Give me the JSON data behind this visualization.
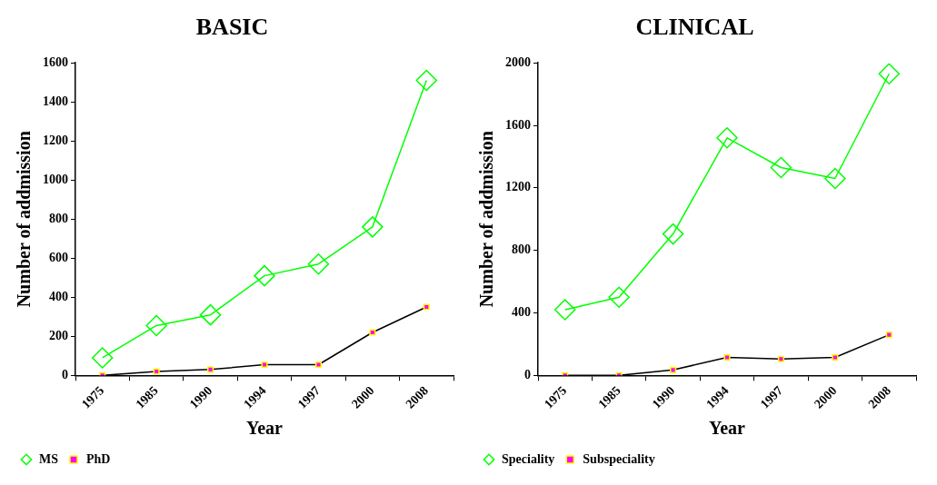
{
  "chart_data": [
    {
      "type": "line",
      "title": "BASIC",
      "xlabel": "Year",
      "ylabel": "Number of addmission",
      "categories": [
        "1975",
        "1985",
        "1990",
        "1994",
        "1997",
        "2000",
        "2008"
      ],
      "ylim": [
        0,
        1600
      ],
      "yticks": [
        0,
        200,
        400,
        600,
        800,
        1000,
        1200,
        1400,
        1600
      ],
      "grid": false,
      "legend": "bottom",
      "series": [
        {
          "name": "MS",
          "color": "#00ff00",
          "marker": "diamond",
          "values": [
            90,
            255,
            310,
            510,
            570,
            760,
            1510
          ]
        },
        {
          "name": "PhD",
          "color": "#000000",
          "marker": "square",
          "values": [
            0,
            20,
            30,
            55,
            55,
            220,
            350
          ]
        }
      ]
    },
    {
      "type": "line",
      "title": "CLINICAL",
      "xlabel": "Year",
      "ylabel": "Number of addmission",
      "categories": [
        "1975",
        "1985",
        "1990",
        "1994",
        "1997",
        "2000",
        "2008"
      ],
      "ylim": [
        0,
        2000
      ],
      "yticks": [
        0,
        400,
        800,
        1200,
        1600,
        2000
      ],
      "grid": false,
      "legend": "bottom",
      "series": [
        {
          "name": "Speciality",
          "color": "#00ff00",
          "marker": "diamond",
          "values": [
            420,
            500,
            905,
            1520,
            1330,
            1260,
            1930
          ]
        },
        {
          "name": "Subspeciality",
          "color": "#000000",
          "marker": "square",
          "values": [
            0,
            0,
            35,
            115,
            105,
            115,
            260
          ]
        }
      ]
    }
  ]
}
